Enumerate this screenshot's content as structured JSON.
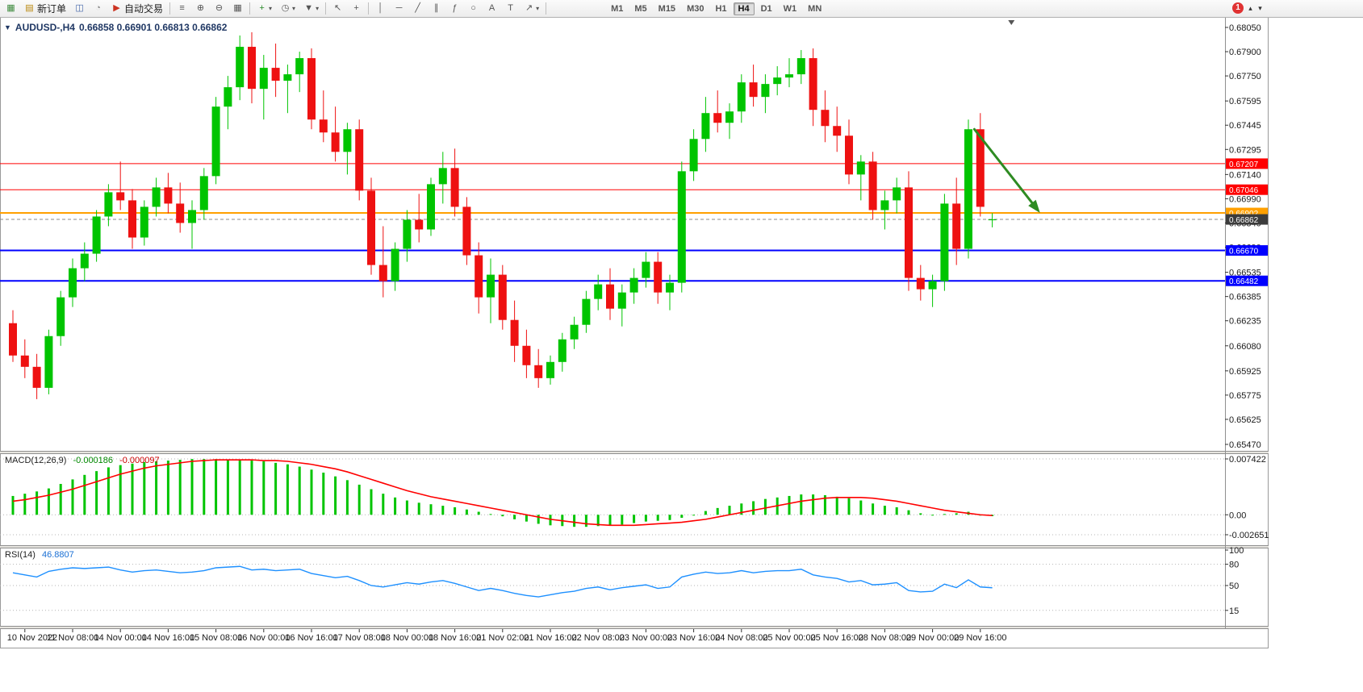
{
  "toolbar": {
    "groups": [
      {
        "items": [
          {
            "name": "new-chart",
            "icon": "new-chart",
            "color": "#3c8a3c"
          },
          {
            "name": "new-order",
            "icon": "new-order",
            "label": "新订单",
            "color": "#b8860b"
          },
          {
            "name": "profiles",
            "icon": "profiles",
            "color": "#4466aa"
          },
          {
            "name": "refresh",
            "icon": "refresh",
            "color": "#888888"
          },
          {
            "name": "auto-trading",
            "icon": "auto-trading",
            "label": "自动交易",
            "color": "#cc3322"
          }
        ]
      },
      {
        "items": [
          {
            "name": "bar-chart-mode",
            "icon": "bars"
          },
          {
            "name": "zoom-in",
            "icon": "zoom-in"
          },
          {
            "name": "zoom-out",
            "icon": "zoom-out"
          },
          {
            "name": "tile-windows",
            "icon": "tile"
          }
        ]
      },
      {
        "items": [
          {
            "name": "indicators",
            "icon": "indicators",
            "color": "#2a8a2a",
            "dropdown": true
          },
          {
            "name": "periods",
            "icon": "periods",
            "dropdown": true
          },
          {
            "name": "templates",
            "icon": "templates",
            "dropdown": true
          }
        ]
      },
      {
        "items": [
          {
            "name": "cursor",
            "icon": "cursor"
          },
          {
            "name": "crosshair",
            "icon": "crosshair"
          }
        ]
      },
      {
        "items": [
          {
            "name": "vertical-line",
            "icon": "vline"
          },
          {
            "name": "horizontal-line",
            "icon": "hline"
          },
          {
            "name": "trendline",
            "icon": "trendline"
          },
          {
            "name": "channel",
            "icon": "channel"
          },
          {
            "name": "fibonacci",
            "icon": "fibonacci"
          },
          {
            "name": "shapes",
            "icon": "shapes"
          },
          {
            "name": "text",
            "icon": "text"
          },
          {
            "name": "text-label",
            "icon": "label"
          },
          {
            "name": "arrows",
            "icon": "arrows",
            "dropdown": true
          }
        ]
      }
    ],
    "timeframes": [
      "M1",
      "M5",
      "M15",
      "M30",
      "H1",
      "H4",
      "D1",
      "W1",
      "MN"
    ],
    "active_timeframe": "H4",
    "notification_badge": "1",
    "scroll_up_glyph": "▴",
    "scroll_down_glyph": "▾"
  },
  "chart": {
    "symbol_period": "AUDUSD-,H4",
    "ohlc_text": "0.66858 0.66901 0.66813 0.66862",
    "collapse_glyph": "▼"
  },
  "indicators": {
    "macd": {
      "label": "MACD(12,26,9)",
      "value_main": "-0.000186",
      "value_signal": "-0.000097"
    },
    "rsi": {
      "label": "RSI(14)",
      "value": "46.8807"
    }
  },
  "chart_data": [
    {
      "type": "candlestick",
      "symbol": "AUDUSD-",
      "period": "H4",
      "ohlc_current": {
        "open": 0.66858,
        "high": 0.66901,
        "low": 0.66813,
        "close": 0.66862
      },
      "ylim": [
        0.6547,
        0.6805
      ],
      "grid": false,
      "y_ticks": [
        "0.68050",
        "0.67900",
        "0.67750",
        "0.67595",
        "0.67445",
        "0.67295",
        "0.67140",
        "0.66990",
        "0.66840",
        "0.66690",
        "0.66535",
        "0.66385",
        "0.66235",
        "0.66080",
        "0.65925",
        "0.65775",
        "0.65625",
        "0.65470"
      ],
      "x_labels": [
        "10 Nov 2022",
        "11 Nov 08:00",
        "14 Nov 00:00",
        "14 Nov 16:00",
        "15 Nov 08:00",
        "16 Nov 00:00",
        "16 Nov 16:00",
        "17 Nov 08:00",
        "18 Nov 00:00",
        "18 Nov 16:00",
        "21 Nov 02:00",
        "21 Nov 16:00",
        "22 Nov 08:00",
        "23 Nov 00:00",
        "23 Nov 16:00",
        "24 Nov 08:00",
        "25 Nov 00:00",
        "25 Nov 16:00",
        "28 Nov 08:00",
        "29 Nov 00:00",
        "29 Nov 16:00"
      ],
      "x_label_first_bar": 1,
      "x_label_step": 4,
      "colors": {
        "up": "#00c400",
        "down": "#ee1111",
        "background": "#ffffff"
      },
      "candles": [
        [
          0.6622,
          0.663,
          0.6598,
          0.6602
        ],
        [
          0.6602,
          0.6612,
          0.6588,
          0.6595
        ],
        [
          0.6595,
          0.6603,
          0.6575,
          0.6582
        ],
        [
          0.6582,
          0.6618,
          0.6578,
          0.6614
        ],
        [
          0.6614,
          0.6642,
          0.6608,
          0.6638
        ],
        [
          0.6638,
          0.6662,
          0.6632,
          0.6656
        ],
        [
          0.6656,
          0.6672,
          0.6648,
          0.6665
        ],
        [
          0.6665,
          0.6692,
          0.666,
          0.6688
        ],
        [
          0.6688,
          0.6708,
          0.6682,
          0.6703
        ],
        [
          0.6703,
          0.6722,
          0.6692,
          0.6698
        ],
        [
          0.6698,
          0.6705,
          0.6668,
          0.6675
        ],
        [
          0.6675,
          0.6698,
          0.667,
          0.6694
        ],
        [
          0.6694,
          0.6712,
          0.6688,
          0.6706
        ],
        [
          0.6706,
          0.6715,
          0.669,
          0.6696
        ],
        [
          0.6696,
          0.6709,
          0.6678,
          0.6684
        ],
        [
          0.6684,
          0.6698,
          0.6668,
          0.6692
        ],
        [
          0.6692,
          0.6718,
          0.6686,
          0.6713
        ],
        [
          0.6713,
          0.6762,
          0.6708,
          0.6756
        ],
        [
          0.6756,
          0.6775,
          0.6742,
          0.6768
        ],
        [
          0.6768,
          0.68,
          0.676,
          0.6793
        ],
        [
          0.6793,
          0.6802,
          0.6758,
          0.6767
        ],
        [
          0.6767,
          0.6788,
          0.6748,
          0.678
        ],
        [
          0.678,
          0.6795,
          0.6762,
          0.6772
        ],
        [
          0.6772,
          0.6782,
          0.6752,
          0.6776
        ],
        [
          0.6776,
          0.679,
          0.6765,
          0.6786
        ],
        [
          0.6786,
          0.6792,
          0.6742,
          0.6748
        ],
        [
          0.6748,
          0.6766,
          0.6734,
          0.674
        ],
        [
          0.674,
          0.6756,
          0.6722,
          0.6728
        ],
        [
          0.6728,
          0.6746,
          0.6714,
          0.6742
        ],
        [
          0.6742,
          0.6748,
          0.6698,
          0.6704
        ],
        [
          0.6704,
          0.6712,
          0.6652,
          0.6658
        ],
        [
          0.6658,
          0.6682,
          0.6638,
          0.6648
        ],
        [
          0.6648,
          0.6672,
          0.6642,
          0.6668
        ],
        [
          0.6668,
          0.6692,
          0.666,
          0.6686
        ],
        [
          0.6686,
          0.6702,
          0.6672,
          0.668
        ],
        [
          0.668,
          0.6712,
          0.6676,
          0.6708
        ],
        [
          0.6708,
          0.6728,
          0.6696,
          0.6718
        ],
        [
          0.6718,
          0.673,
          0.6688,
          0.6694
        ],
        [
          0.6694,
          0.67,
          0.6658,
          0.6664
        ],
        [
          0.6664,
          0.6672,
          0.6628,
          0.6638
        ],
        [
          0.6638,
          0.6662,
          0.6622,
          0.6652
        ],
        [
          0.6652,
          0.6658,
          0.6618,
          0.6624
        ],
        [
          0.6624,
          0.6636,
          0.6598,
          0.6608
        ],
        [
          0.6608,
          0.6618,
          0.6588,
          0.6596
        ],
        [
          0.6596,
          0.6606,
          0.6582,
          0.6588
        ],
        [
          0.6588,
          0.6602,
          0.6584,
          0.6598
        ],
        [
          0.6598,
          0.6616,
          0.6592,
          0.6612
        ],
        [
          0.6612,
          0.6626,
          0.6606,
          0.6621
        ],
        [
          0.6621,
          0.6642,
          0.6616,
          0.6637
        ],
        [
          0.6637,
          0.6652,
          0.663,
          0.6646
        ],
        [
          0.6646,
          0.6656,
          0.6624,
          0.6631
        ],
        [
          0.6631,
          0.6646,
          0.662,
          0.6641
        ],
        [
          0.6641,
          0.6656,
          0.6634,
          0.665
        ],
        [
          0.665,
          0.6666,
          0.6644,
          0.666
        ],
        [
          0.666,
          0.6666,
          0.6634,
          0.6641
        ],
        [
          0.6641,
          0.6652,
          0.663,
          0.6647
        ],
        [
          0.6647,
          0.6722,
          0.6641,
          0.6716
        ],
        [
          0.6716,
          0.6742,
          0.671,
          0.6736
        ],
        [
          0.6736,
          0.6762,
          0.6728,
          0.6752
        ],
        [
          0.6752,
          0.6766,
          0.674,
          0.6746
        ],
        [
          0.6746,
          0.6758,
          0.6736,
          0.6753
        ],
        [
          0.6753,
          0.6776,
          0.6746,
          0.6771
        ],
        [
          0.6771,
          0.6782,
          0.6756,
          0.6762
        ],
        [
          0.6762,
          0.6776,
          0.6752,
          0.677
        ],
        [
          0.677,
          0.6781,
          0.6763,
          0.6774
        ],
        [
          0.6774,
          0.6786,
          0.6768,
          0.6776
        ],
        [
          0.6776,
          0.6791,
          0.677,
          0.6786
        ],
        [
          0.6786,
          0.6792,
          0.6744,
          0.6754
        ],
        [
          0.6754,
          0.6766,
          0.6734,
          0.6744
        ],
        [
          0.6744,
          0.6756,
          0.6728,
          0.6738
        ],
        [
          0.6738,
          0.6748,
          0.6708,
          0.6714
        ],
        [
          0.6714,
          0.6726,
          0.6698,
          0.6722
        ],
        [
          0.6722,
          0.6728,
          0.6686,
          0.6692
        ],
        [
          0.6692,
          0.6704,
          0.668,
          0.6698
        ],
        [
          0.6698,
          0.6712,
          0.669,
          0.6706
        ],
        [
          0.6706,
          0.6716,
          0.6642,
          0.665
        ],
        [
          0.665,
          0.6658,
          0.6636,
          0.6643
        ],
        [
          0.6643,
          0.6652,
          0.6632,
          0.6648
        ],
        [
          0.6648,
          0.6702,
          0.6642,
          0.6696
        ],
        [
          0.6696,
          0.6712,
          0.6658,
          0.6668
        ],
        [
          0.6668,
          0.6748,
          0.6662,
          0.6742
        ],
        [
          0.6742,
          0.6752,
          0.6688,
          0.6694
        ],
        [
          0.66858,
          0.66901,
          0.66813,
          0.66862
        ]
      ],
      "hlines": [
        {
          "price": 0.67207,
          "label": "0.67207",
          "color": "#ff0000",
          "width": 1
        },
        {
          "price": 0.67046,
          "label": "0.67046",
          "color": "#ff0000",
          "width": 1
        },
        {
          "price": 0.66902,
          "label": "0.66902",
          "color": "#ffa000",
          "width": 2
        },
        {
          "price": 0.6667,
          "label": "0.66670",
          "color": "#0000ff",
          "width": 2
        },
        {
          "price": 0.66482,
          "label": "0.66482",
          "color": "#0000ff",
          "width": 2
        }
      ],
      "current_price": {
        "value": 0.66862,
        "label": "0.66862",
        "tag_color": "#3c3c3c"
      },
      "arrow_annotation": {
        "from_bar": 80.5,
        "from_price": 0.6742,
        "to_bar": 86,
        "to_price": 0.66902,
        "color": "#2e8b22"
      }
    },
    {
      "type": "macd",
      "title": "MACD(12,26,9)",
      "values_shown": [
        -0.000186,
        -9.7e-05
      ],
      "ylim": [
        -0.002651,
        0.007422
      ],
      "y_ticks": [
        "0.007422",
        "0.00",
        "-0.002651"
      ],
      "colors": {
        "histogram": "#00c400",
        "signal": "#ff0000"
      },
      "histogram": [
        0.0025,
        0.0028,
        0.0031,
        0.0035,
        0.0041,
        0.0047,
        0.0053,
        0.0058,
        0.0063,
        0.0066,
        0.0068,
        0.007,
        0.0071,
        0.0072,
        0.0073,
        0.0074,
        0.0074,
        0.0074,
        0.0073,
        0.0073,
        0.0072,
        0.0071,
        0.0069,
        0.0067,
        0.0064,
        0.006,
        0.0056,
        0.0051,
        0.0046,
        0.004,
        0.0034,
        0.0028,
        0.0023,
        0.0019,
        0.0016,
        0.0014,
        0.0012,
        0.001,
        0.0007,
        0.0004,
        0.0001,
        -0.0002,
        -0.0006,
        -0.0009,
        -0.0012,
        -0.0014,
        -0.0015,
        -0.0016,
        -0.0016,
        -0.0015,
        -0.0014,
        -0.0013,
        -0.0011,
        -0.0009,
        -0.0008,
        -0.0007,
        -0.0004,
        0.0,
        0.0005,
        0.0009,
        0.0012,
        0.0015,
        0.0018,
        0.0021,
        0.0023,
        0.0025,
        0.0027,
        0.0027,
        0.0026,
        0.0024,
        0.0022,
        0.0019,
        0.0015,
        0.0012,
        0.001,
        0.0006,
        0.0002,
        0.0,
        0.0001,
        0.0002,
        0.0004,
        0.0,
        -0.000186
      ],
      "signal": [
        0.0018,
        0.002,
        0.0023,
        0.0026,
        0.003,
        0.0034,
        0.0039,
        0.0044,
        0.0049,
        0.0054,
        0.0058,
        0.0062,
        0.0065,
        0.0067,
        0.0069,
        0.0071,
        0.0072,
        0.0073,
        0.0073,
        0.0073,
        0.0073,
        0.0072,
        0.0072,
        0.0071,
        0.0069,
        0.0067,
        0.0064,
        0.0061,
        0.0057,
        0.0052,
        0.0047,
        0.0042,
        0.0037,
        0.0032,
        0.0028,
        0.0024,
        0.0021,
        0.0018,
        0.0015,
        0.0012,
        0.0009,
        0.0006,
        0.0003,
        0.0,
        -0.0003,
        -0.0006,
        -0.0008,
        -0.001,
        -0.0012,
        -0.0013,
        -0.0014,
        -0.0014,
        -0.0014,
        -0.0013,
        -0.0012,
        -0.0011,
        -0.001,
        -0.0008,
        -0.0006,
        -0.0003,
        0.0,
        0.0003,
        0.0006,
        0.0009,
        0.0012,
        0.0015,
        0.0018,
        0.002,
        0.0022,
        0.0023,
        0.0023,
        0.0023,
        0.0022,
        0.002,
        0.0018,
        0.0015,
        0.0012,
        0.0009,
        0.0006,
        0.0004,
        0.0002,
        0.0,
        -9.7e-05
      ]
    },
    {
      "type": "rsi",
      "title": "RSI(14)",
      "value_shown": 46.8807,
      "ylim": [
        0,
        100
      ],
      "y_ticks": [
        "100",
        "80",
        "50",
        "15"
      ],
      "levels": [
        80,
        50,
        15
      ],
      "color": "#1e90ff",
      "values": [
        68,
        65,
        62,
        70,
        73,
        75,
        74,
        75,
        76,
        72,
        69,
        71,
        72,
        70,
        68,
        69,
        71,
        75,
        76,
        77,
        72,
        73,
        71,
        72,
        73,
        67,
        64,
        61,
        63,
        57,
        50,
        48,
        51,
        54,
        52,
        55,
        57,
        53,
        48,
        43,
        46,
        43,
        39,
        36,
        34,
        37,
        40,
        42,
        46,
        48,
        44,
        47,
        49,
        51,
        46,
        48,
        62,
        66,
        69,
        67,
        68,
        71,
        68,
        70,
        71,
        71,
        73,
        65,
        62,
        60,
        55,
        57,
        51,
        52,
        54,
        43,
        41,
        42,
        52,
        47,
        58,
        48,
        46.88
      ]
    }
  ]
}
